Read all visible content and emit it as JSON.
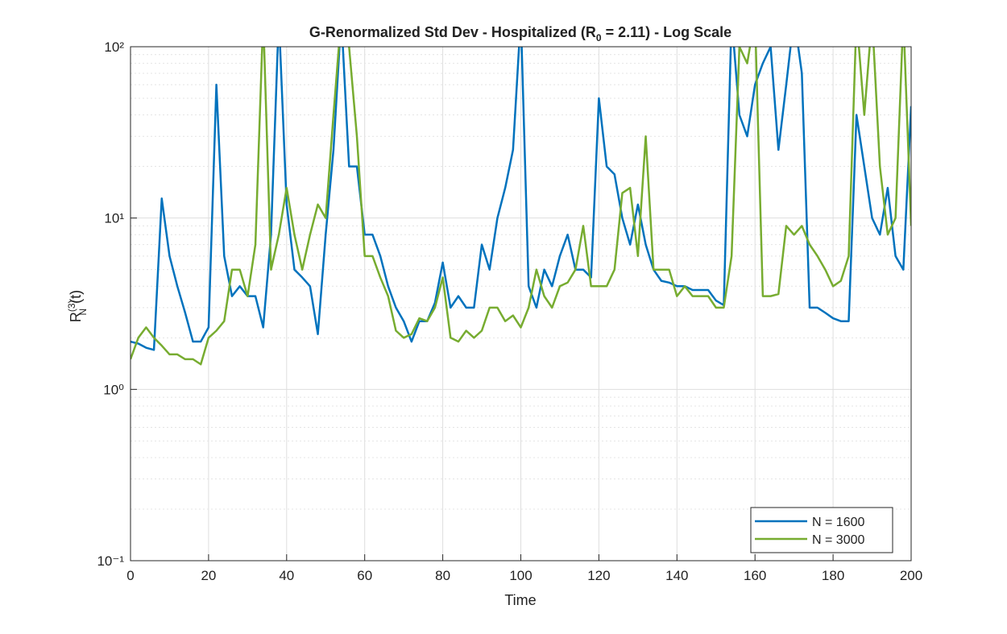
{
  "chart_data": {
    "type": "line",
    "title": [
      "G-Renormalized  Std  Dev  -  Hospitalized  (R",
      "0",
      "  =  2.11)  -  Log  Scale"
    ],
    "xlabel": "Time",
    "ylabel": [
      "R",
      "(3)",
      "N",
      "(t)"
    ],
    "yscale": "log",
    "grid": true,
    "legend": "southeast",
    "xlim": [
      0,
      200
    ],
    "xticks": [
      0,
      20,
      40,
      60,
      80,
      100,
      120,
      140,
      160,
      180,
      200
    ],
    "ylim": [
      0.1,
      100
    ],
    "yticks": [
      {
        "value": 0.1,
        "label": "10⁻¹"
      },
      {
        "value": 1,
        "label": "10⁰"
      },
      {
        "value": 10,
        "label": "10¹"
      },
      {
        "value": 100,
        "label": "10²"
      }
    ],
    "x": [
      0,
      2,
      4,
      6,
      8,
      10,
      12,
      14,
      16,
      18,
      20,
      22,
      24,
      26,
      28,
      30,
      32,
      34,
      36,
      38,
      40,
      42,
      44,
      46,
      48,
      50,
      52,
      54,
      56,
      58,
      60,
      62,
      64,
      66,
      68,
      70,
      72,
      74,
      76,
      78,
      80,
      82,
      84,
      86,
      88,
      90,
      92,
      94,
      96,
      98,
      100,
      102,
      104,
      106,
      108,
      110,
      112,
      114,
      116,
      118,
      120,
      122,
      124,
      126,
      128,
      130,
      132,
      134,
      136,
      138,
      140,
      142,
      144,
      146,
      148,
      150,
      152,
      154,
      156,
      158,
      160,
      162,
      164,
      166,
      168,
      170,
      172,
      174,
      176,
      178,
      180,
      182,
      184,
      186,
      188,
      190,
      192,
      194,
      196,
      198,
      200
    ],
    "series": [
      {
        "name": "N = 1600",
        "color": "#0072bd",
        "values": [
          1.9,
          1.85,
          1.75,
          1.7,
          13,
          6,
          4,
          2.8,
          1.9,
          1.9,
          2.3,
          60,
          6,
          3.5,
          4,
          3.5,
          3.5,
          2.3,
          8,
          150,
          12,
          5,
          4.5,
          4,
          2.1,
          8,
          25,
          150,
          20,
          20,
          8,
          8,
          6,
          4,
          3,
          2.5,
          1.9,
          2.5,
          2.5,
          3.2,
          5.5,
          3,
          3.5,
          3,
          3,
          7,
          5,
          10,
          15,
          25,
          150,
          4,
          3,
          5,
          4,
          6,
          8,
          5,
          5,
          4.5,
          50,
          20,
          18,
          10,
          7,
          12,
          7,
          5,
          4.3,
          4.2,
          4,
          4,
          3.8,
          3.8,
          3.8,
          3.3,
          3.1,
          150,
          40,
          30,
          60,
          80,
          100,
          25,
          60,
          150,
          70,
          3,
          3,
          2.8,
          2.6,
          2.5,
          2.5,
          40,
          20,
          10,
          8,
          15,
          6,
          5,
          45
        ]
      },
      {
        "name": "N = 3000",
        "color": "#77ac30",
        "values": [
          1.5,
          2,
          2.3,
          2,
          1.8,
          1.6,
          1.6,
          1.5,
          1.5,
          1.4,
          2,
          2.2,
          2.5,
          5,
          5,
          3.5,
          7,
          150,
          5,
          8,
          15,
          8,
          5,
          8,
          12,
          10,
          40,
          150,
          100,
          30,
          6,
          6,
          4.5,
          3.5,
          2.2,
          2,
          2.1,
          2.6,
          2.5,
          3,
          4.5,
          2,
          1.9,
          2.2,
          2,
          2.2,
          3,
          3,
          2.5,
          2.7,
          2.3,
          3,
          5,
          3.5,
          3,
          4,
          4.2,
          5,
          9,
          4,
          4,
          4,
          5,
          14,
          15,
          6,
          30,
          5,
          5,
          5,
          3.5,
          4,
          3.5,
          3.5,
          3.5,
          3,
          3,
          6,
          100,
          80,
          150,
          3.5,
          3.5,
          3.6,
          9,
          8,
          9,
          7,
          6,
          5,
          4,
          4.3,
          6,
          150,
          40,
          150,
          20,
          8,
          10,
          150,
          9
        ]
      }
    ]
  }
}
